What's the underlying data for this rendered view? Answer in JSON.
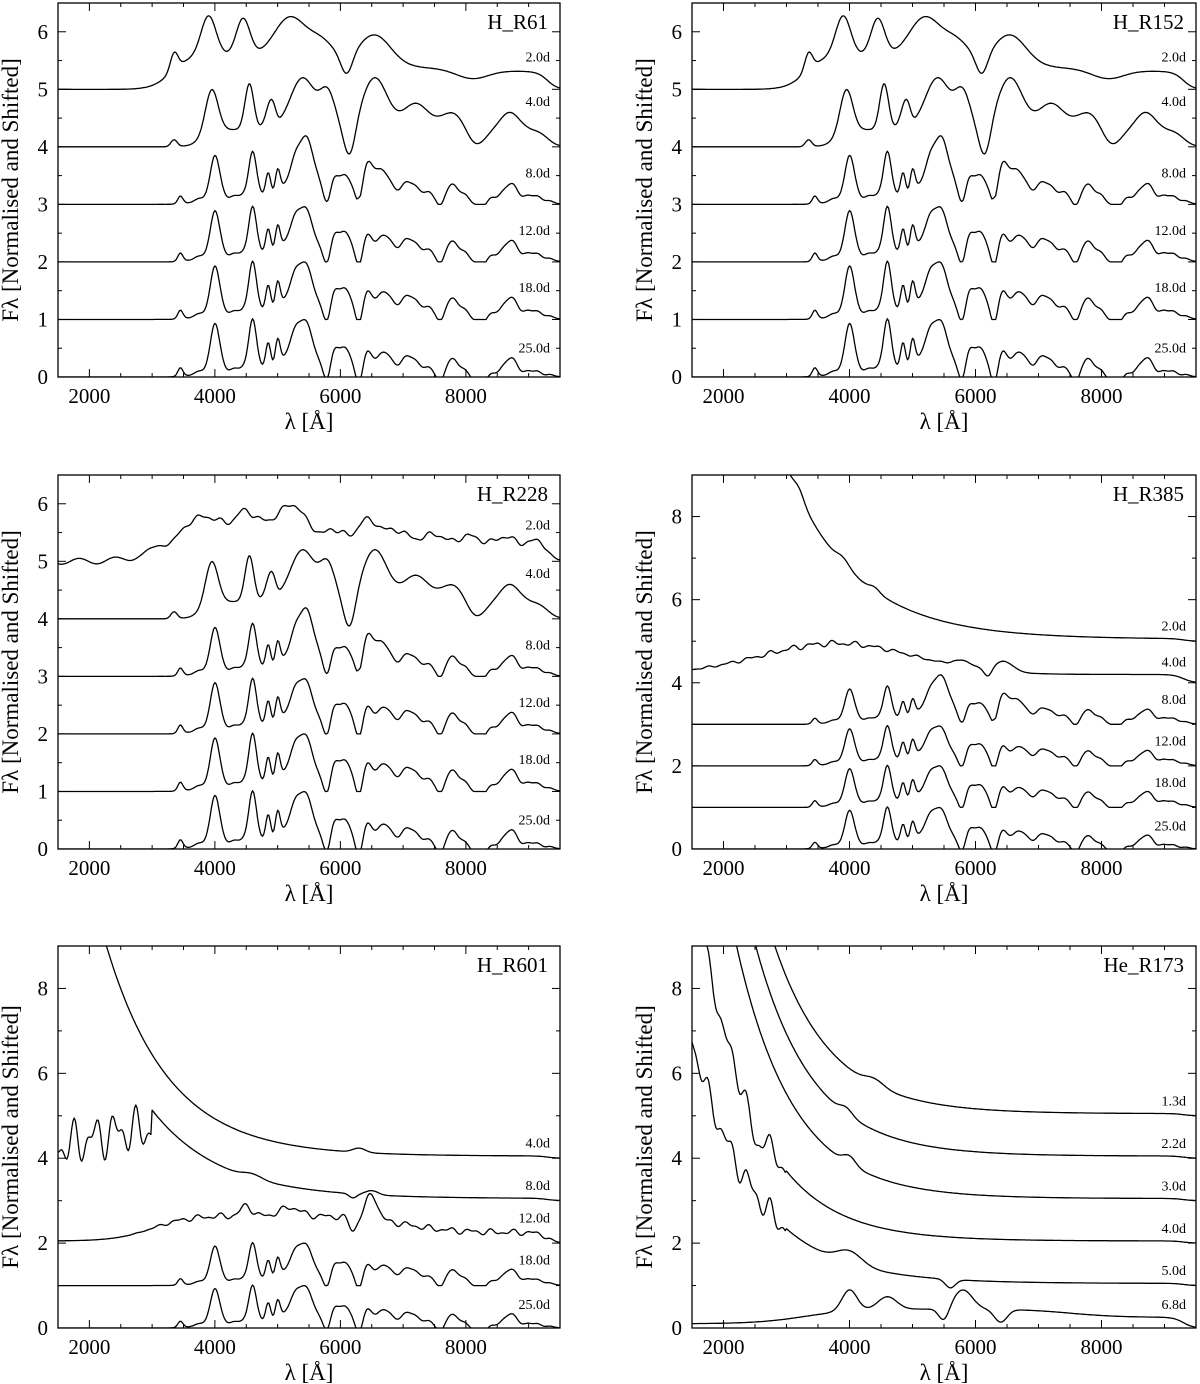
{
  "chart_data": [
    {
      "type": "line",
      "title": "H_R61",
      "xlabel": "λ [Å]",
      "ylabel": "Fλ [Normalised and Shifted]",
      "xlim": [
        1500,
        9500
      ],
      "ylim": [
        0,
        6.5
      ],
      "xticks": [
        "2000",
        "4000",
        "6000",
        "8000"
      ],
      "yticks": [
        "0",
        "1",
        "2",
        "3",
        "4",
        "5",
        "6"
      ],
      "series": [
        {
          "name": "2.0d",
          "offset": 5,
          "shape": "early",
          "end": 0.2
        },
        {
          "name": "4.0d",
          "offset": 4,
          "shape": "t4",
          "end": 0.25
        },
        {
          "name": "8.0d",
          "offset": 3,
          "shape": "t8",
          "end": 0.2
        },
        {
          "name": "12.0d",
          "offset": 2,
          "shape": "t12",
          "end": 0.2
        },
        {
          "name": "18.0d",
          "offset": 1,
          "shape": "t18",
          "end": 0.15
        },
        {
          "name": "25.0d",
          "offset": 0,
          "shape": "t25",
          "end": 0.1
        }
      ]
    },
    {
      "type": "line",
      "title": "H_R152",
      "xlabel": "λ [Å]",
      "ylabel": "Fλ [Normalised and Shifted]",
      "xlim": [
        1500,
        9500
      ],
      "ylim": [
        0,
        6.5
      ],
      "xticks": [
        "2000",
        "4000",
        "6000",
        "8000"
      ],
      "yticks": [
        "0",
        "1",
        "2",
        "3",
        "4",
        "5",
        "6"
      ],
      "series": [
        {
          "name": "2.0d",
          "offset": 5,
          "shape": "early",
          "end": 0.2
        },
        {
          "name": "4.0d",
          "offset": 4,
          "shape": "t4",
          "end": 0.25
        },
        {
          "name": "8.0d",
          "offset": 3,
          "shape": "t8",
          "end": 0.2
        },
        {
          "name": "12.0d",
          "offset": 2,
          "shape": "t12",
          "end": 0.2
        },
        {
          "name": "18.0d",
          "offset": 1,
          "shape": "t18",
          "end": 0.15
        },
        {
          "name": "25.0d",
          "offset": 0,
          "shape": "t25",
          "end": 0.1
        }
      ]
    },
    {
      "type": "line",
      "title": "H_R228",
      "xlabel": "λ [Å]",
      "ylabel": "Fλ [Normalised and Shifted]",
      "xlim": [
        1500,
        9500
      ],
      "ylim": [
        0,
        6.5
      ],
      "xticks": [
        "2000",
        "4000",
        "6000",
        "8000"
      ],
      "yticks": [
        "0",
        "1",
        "2",
        "3",
        "4",
        "5",
        "6"
      ],
      "series": [
        {
          "name": "2.0d",
          "offset": 5,
          "shape": "early2",
          "end": 0.2
        },
        {
          "name": "4.0d",
          "offset": 4,
          "shape": "t4",
          "end": 0.25
        },
        {
          "name": "8.0d",
          "offset": 3,
          "shape": "t8",
          "end": 0.2
        },
        {
          "name": "12.0d",
          "offset": 2,
          "shape": "t12",
          "end": 0.2
        },
        {
          "name": "18.0d",
          "offset": 1,
          "shape": "t18",
          "end": 0.15
        },
        {
          "name": "25.0d",
          "offset": 0,
          "shape": "t25",
          "end": 0.1
        }
      ]
    },
    {
      "type": "line",
      "title": "H_R385",
      "xlabel": "λ [Å]",
      "ylabel": "Fλ [Normalised and Shifted]",
      "xlim": [
        1500,
        9500
      ],
      "ylim": [
        0,
        9
      ],
      "xticks": [
        "2000",
        "4000",
        "6000",
        "8000"
      ],
      "yticks": [
        "0",
        "2",
        "4",
        "6",
        "8"
      ],
      "series": [
        {
          "name": "2.0d",
          "offset": 5,
          "shape": "blue",
          "end": 0.05
        },
        {
          "name": "4.0d",
          "offset": 4,
          "shape": "flat",
          "end": 0.1
        },
        {
          "name": "8.0d",
          "offset": 3,
          "shape": "t8",
          "end": 0.2
        },
        {
          "name": "12.0d",
          "offset": 2,
          "shape": "t12",
          "end": 0.2
        },
        {
          "name": "18.0d",
          "offset": 1,
          "shape": "t18",
          "end": 0.15
        },
        {
          "name": "25.0d",
          "offset": 0,
          "shape": "t25",
          "end": 0.1
        }
      ]
    },
    {
      "type": "line",
      "title": "H_R601",
      "xlabel": "λ [Å]",
      "ylabel": "Fλ [Normalised and Shifted]",
      "xlim": [
        1500,
        9500
      ],
      "ylim": [
        0,
        9
      ],
      "xticks": [
        "2000",
        "4000",
        "6000",
        "8000"
      ],
      "yticks": [
        "0",
        "2",
        "4",
        "6",
        "8"
      ],
      "series": [
        {
          "name": "4.0d",
          "offset": 4,
          "shape": "blue601",
          "end": 0.05
        },
        {
          "name": "8.0d",
          "offset": 3,
          "shape": "blueUV",
          "end": 0.1
        },
        {
          "name": "12.0d",
          "offset": 2,
          "shape": "mid12",
          "end": 0.2
        },
        {
          "name": "18.0d",
          "offset": 1,
          "shape": "t18",
          "end": 0.2
        },
        {
          "name": "25.0d",
          "offset": 0,
          "shape": "t25",
          "end": 0.1
        }
      ]
    },
    {
      "type": "line",
      "title": "He_R173",
      "xlabel": "λ [Å]",
      "ylabel": "Fλ [Normalised and Shifted]",
      "xlim": [
        1500,
        9500
      ],
      "ylim": [
        0,
        9
      ],
      "xticks": [
        "2000",
        "4000",
        "6000",
        "8000"
      ],
      "yticks": [
        "0",
        "2",
        "4",
        "6",
        "8"
      ],
      "series": [
        {
          "name": "1.3d",
          "offset": 5,
          "shape": "he1",
          "end": 0.05
        },
        {
          "name": "2.2d",
          "offset": 4,
          "shape": "he2",
          "end": 0.05
        },
        {
          "name": "3.0d",
          "offset": 3,
          "shape": "he3",
          "end": 0.05
        },
        {
          "name": "4.0d",
          "offset": 2,
          "shape": "he4",
          "end": 0.05
        },
        {
          "name": "5.0d",
          "offset": 1,
          "shape": "he5",
          "end": 0.05
        },
        {
          "name": "6.8d",
          "offset": 0,
          "shape": "he6",
          "end": 0.15
        }
      ]
    }
  ]
}
